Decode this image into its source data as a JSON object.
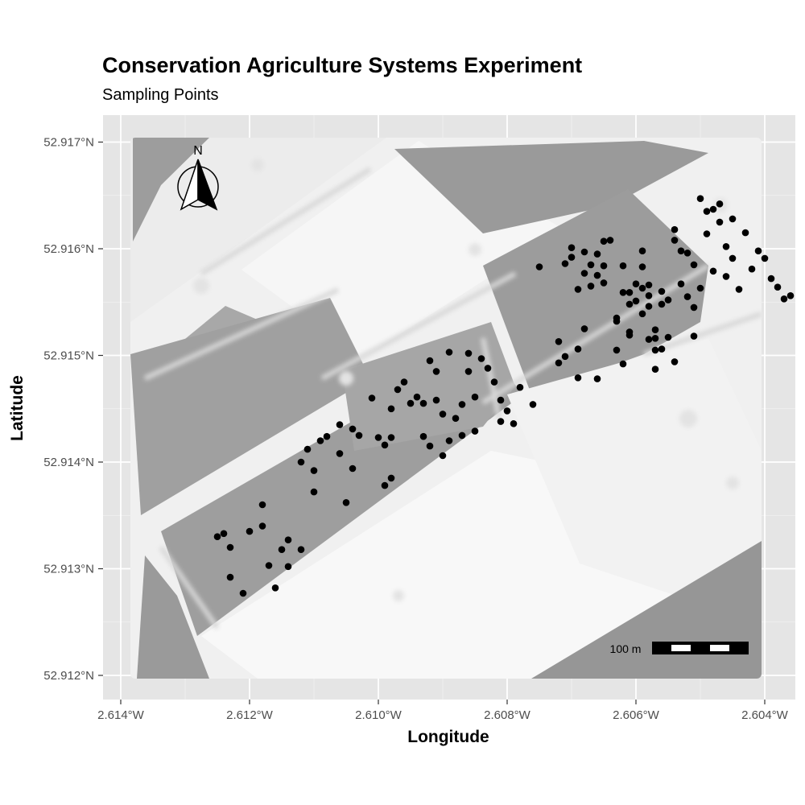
{
  "chart_data": {
    "type": "scatter",
    "title": "Conservation Agriculture Systems Experiment",
    "subtitle": "Sampling Points",
    "xlabel": "Longitude",
    "ylabel": "Latitude",
    "xlim": [
      -2.6143,
      -2.6035
    ],
    "ylim": [
      52.91177,
      52.91725
    ],
    "x_ticks": [
      {
        "value": -2.614,
        "label": "2.614°W"
      },
      {
        "value": -2.612,
        "label": "2.612°W"
      },
      {
        "value": -2.61,
        "label": "2.610°W"
      },
      {
        "value": -2.608,
        "label": "2.608°W"
      },
      {
        "value": -2.606,
        "label": "2.606°W"
      },
      {
        "value": -2.604,
        "label": "2.604°W"
      }
    ],
    "y_ticks": [
      {
        "value": 52.912,
        "label": "52.912°N"
      },
      {
        "value": 52.913,
        "label": "52.913°N"
      },
      {
        "value": 52.914,
        "label": "52.914°N"
      },
      {
        "value": 52.915,
        "label": "52.915°N"
      },
      {
        "value": 52.916,
        "label": "52.916°N"
      },
      {
        "value": 52.917,
        "label": "52.917°N"
      }
    ],
    "grid": true,
    "background": "grayscale aerial image",
    "point_color": "#000000",
    "north_arrow": {
      "label": "N",
      "placement": "top-left"
    },
    "scale_bar": {
      "label": "100 m",
      "placement": "bottom-right"
    },
    "points": [
      [
        -2.6125,
        52.9133
      ],
      [
        -2.6124,
        52.91333
      ],
      [
        -2.6123,
        52.9132
      ],
      [
        -2.6123,
        52.91292
      ],
      [
        -2.6121,
        52.91277
      ],
      [
        -2.612,
        52.91335
      ],
      [
        -2.6118,
        52.9136
      ],
      [
        -2.6118,
        52.9134
      ],
      [
        -2.6117,
        52.91303
      ],
      [
        -2.6116,
        52.91282
      ],
      [
        -2.6115,
        52.91318
      ],
      [
        -2.6114,
        52.91327
      ],
      [
        -2.6114,
        52.91302
      ],
      [
        -2.6112,
        52.91318
      ],
      [
        -2.6112,
        52.914
      ],
      [
        -2.6111,
        52.91412
      ],
      [
        -2.611,
        52.91372
      ],
      [
        -2.611,
        52.91392
      ],
      [
        -2.6109,
        52.9142
      ],
      [
        -2.6108,
        52.91424
      ],
      [
        -2.6106,
        52.91435
      ],
      [
        -2.6106,
        52.91408
      ],
      [
        -2.6105,
        52.91362
      ],
      [
        -2.6104,
        52.91431
      ],
      [
        -2.6104,
        52.91394
      ],
      [
        -2.6103,
        52.91425
      ],
      [
        -2.6101,
        52.9146
      ],
      [
        -2.61,
        52.91423
      ],
      [
        -2.6099,
        52.91416
      ],
      [
        -2.6099,
        52.91378
      ],
      [
        -2.6098,
        52.91385
      ],
      [
        -2.6098,
        52.91423
      ],
      [
        -2.6098,
        52.9145
      ],
      [
        -2.6097,
        52.91468
      ],
      [
        -2.6096,
        52.91475
      ],
      [
        -2.6095,
        52.91455
      ],
      [
        -2.6094,
        52.91461
      ],
      [
        -2.6093,
        52.91455
      ],
      [
        -2.6093,
        52.91424
      ],
      [
        -2.6092,
        52.91415
      ],
      [
        -2.6092,
        52.91495
      ],
      [
        -2.6091,
        52.91485
      ],
      [
        -2.6091,
        52.91458
      ],
      [
        -2.609,
        52.91445
      ],
      [
        -2.609,
        52.91406
      ],
      [
        -2.6089,
        52.9142
      ],
      [
        -2.6089,
        52.91503
      ],
      [
        -2.6088,
        52.91441
      ],
      [
        -2.6087,
        52.91425
      ],
      [
        -2.6087,
        52.91454
      ],
      [
        -2.6086,
        52.91502
      ],
      [
        -2.6086,
        52.91485
      ],
      [
        -2.6085,
        52.91429
      ],
      [
        -2.6085,
        52.91461
      ],
      [
        -2.6084,
        52.91497
      ],
      [
        -2.6083,
        52.91488
      ],
      [
        -2.6082,
        52.91475
      ],
      [
        -2.6081,
        52.91458
      ],
      [
        -2.6081,
        52.91438
      ],
      [
        -2.608,
        52.91448
      ],
      [
        -2.6079,
        52.91436
      ],
      [
        -2.6078,
        52.9147
      ],
      [
        -2.6076,
        52.91454
      ],
      [
        -2.6075,
        52.91583
      ],
      [
        -2.6072,
        52.91493
      ],
      [
        -2.6072,
        52.91513
      ],
      [
        -2.6071,
        52.91586
      ],
      [
        -2.6071,
        52.91499
      ],
      [
        -2.607,
        52.91601
      ],
      [
        -2.607,
        52.91592
      ],
      [
        -2.6069,
        52.91562
      ],
      [
        -2.6069,
        52.91506
      ],
      [
        -2.6069,
        52.91479
      ],
      [
        -2.6068,
        52.91577
      ],
      [
        -2.6068,
        52.91597
      ],
      [
        -2.6068,
        52.91525
      ],
      [
        -2.6067,
        52.91585
      ],
      [
        -2.6067,
        52.91565
      ],
      [
        -2.6066,
        52.91478
      ],
      [
        -2.6066,
        52.91595
      ],
      [
        -2.6066,
        52.91575
      ],
      [
        -2.6065,
        52.91568
      ],
      [
        -2.6065,
        52.91584
      ],
      [
        -2.6065,
        52.91607
      ],
      [
        -2.6064,
        52.91608
      ],
      [
        -2.6063,
        52.91535
      ],
      [
        -2.6063,
        52.91532
      ],
      [
        -2.6063,
        52.91505
      ],
      [
        -2.6062,
        52.91492
      ],
      [
        -2.6062,
        52.91559
      ],
      [
        -2.6062,
        52.91584
      ],
      [
        -2.6061,
        52.91559
      ],
      [
        -2.6061,
        52.91548
      ],
      [
        -2.6061,
        52.91522
      ],
      [
        -2.6061,
        52.91519
      ],
      [
        -2.606,
        52.91567
      ],
      [
        -2.606,
        52.91551
      ],
      [
        -2.6059,
        52.91539
      ],
      [
        -2.6059,
        52.91598
      ],
      [
        -2.6059,
        52.91583
      ],
      [
        -2.6059,
        52.91563
      ],
      [
        -2.6058,
        52.91566
      ],
      [
        -2.6058,
        52.91556
      ],
      [
        -2.6058,
        52.91546
      ],
      [
        -2.6058,
        52.91515
      ],
      [
        -2.6057,
        52.91524
      ],
      [
        -2.6057,
        52.91516
      ],
      [
        -2.6057,
        52.91505
      ],
      [
        -2.6057,
        52.91487
      ],
      [
        -2.6056,
        52.9156
      ],
      [
        -2.6056,
        52.91548
      ],
      [
        -2.6056,
        52.91506
      ],
      [
        -2.6055,
        52.91552
      ],
      [
        -2.6055,
        52.91517
      ],
      [
        -2.6054,
        52.91494
      ],
      [
        -2.6054,
        52.91618
      ],
      [
        -2.6054,
        52.91608
      ],
      [
        -2.6053,
        52.91598
      ],
      [
        -2.6053,
        52.91567
      ],
      [
        -2.6052,
        52.91596
      ],
      [
        -2.6052,
        52.91555
      ],
      [
        -2.6051,
        52.91545
      ],
      [
        -2.6051,
        52.91585
      ],
      [
        -2.6051,
        52.91518
      ],
      [
        -2.605,
        52.91563
      ],
      [
        -2.605,
        52.91647
      ],
      [
        -2.6049,
        52.91635
      ],
      [
        -2.6049,
        52.91614
      ],
      [
        -2.6048,
        52.91637
      ],
      [
        -2.6048,
        52.91579
      ],
      [
        -2.6047,
        52.91642
      ],
      [
        -2.6047,
        52.91625
      ],
      [
        -2.6046,
        52.91602
      ],
      [
        -2.6046,
        52.91574
      ],
      [
        -2.6045,
        52.91591
      ],
      [
        -2.6045,
        52.91628
      ],
      [
        -2.6044,
        52.91562
      ],
      [
        -2.6043,
        52.91615
      ],
      [
        -2.6042,
        52.91581
      ],
      [
        -2.6041,
        52.91598
      ],
      [
        -2.604,
        52.91591
      ],
      [
        -2.6039,
        52.91572
      ],
      [
        -2.6038,
        52.91564
      ],
      [
        -2.6037,
        52.91553
      ],
      [
        -2.6036,
        52.91556
      ]
    ]
  }
}
